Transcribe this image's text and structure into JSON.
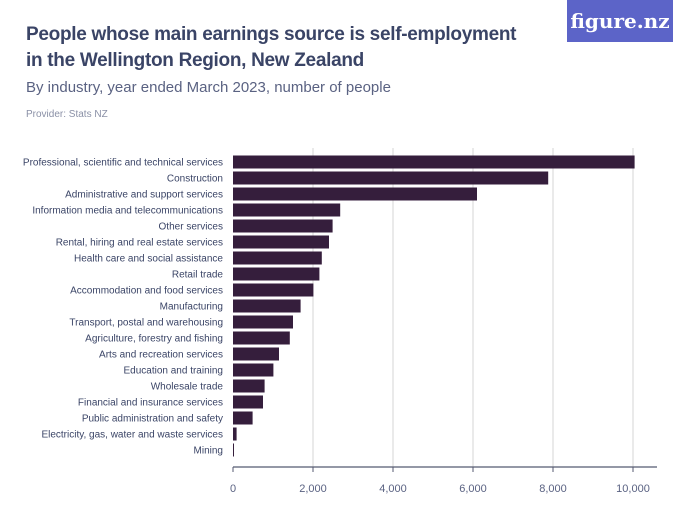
{
  "header": {
    "title": "People whose main earnings source is self-employment in the Wellington Region, New Zealand",
    "subtitle": "By industry, year ended March 2023, number of people",
    "provider": "Provider: Stats NZ",
    "logo": "figure.nz"
  },
  "chart_data": {
    "type": "bar",
    "orientation": "horizontal",
    "title": "People whose main earnings source is self-employment in the Wellington Region, New Zealand",
    "subtitle": "By industry, year ended March 2023, number of people",
    "categories": [
      "Professional, scientific and technical services",
      "Construction",
      "Administrative and support services",
      "Information media and telecommunications",
      "Other services",
      "Rental, hiring and real estate services",
      "Health care and social assistance",
      "Retail trade",
      "Accommodation and food services",
      "Manufacturing",
      "Transport, postal and warehousing",
      "Agriculture, forestry and fishing",
      "Arts and recreation services",
      "Education and training",
      "Wholesale trade",
      "Financial and insurance services",
      "Public administration and safety",
      "Electricity, gas, water and waste services",
      "Mining"
    ],
    "values": [
      10040,
      7880,
      6100,
      2680,
      2490,
      2400,
      2220,
      2160,
      2010,
      1690,
      1500,
      1420,
      1150,
      1010,
      790,
      750,
      490,
      90,
      20
    ],
    "xlim": [
      0,
      10000
    ],
    "ticks": [
      0,
      2000,
      4000,
      6000,
      8000,
      10000
    ],
    "tick_labels": [
      "0",
      "2,000",
      "4,000",
      "6,000",
      "8,000",
      "10,000"
    ],
    "grid": "vertical",
    "bar_color": "#351e3c"
  }
}
